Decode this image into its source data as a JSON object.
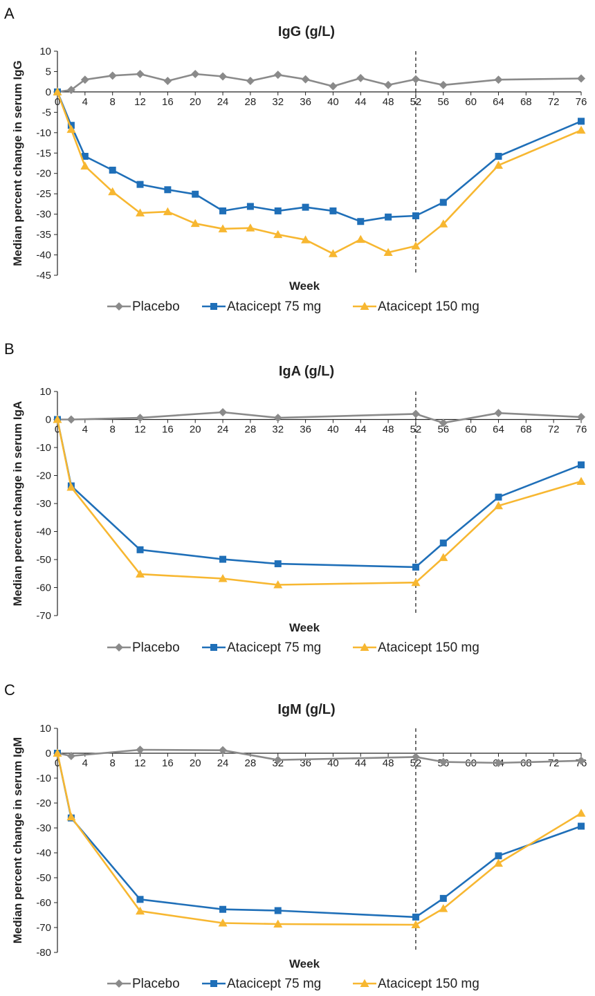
{
  "chart_data": [
    {
      "type": "line",
      "panel": "A",
      "title": "IgG (g/L)",
      "xlabel": "Week",
      "ylabel": "Median percent change in serum IgG",
      "xlim": [
        0,
        76
      ],
      "ylim": [
        -45,
        10
      ],
      "xticks": [
        0,
        4,
        8,
        12,
        16,
        20,
        24,
        28,
        32,
        36,
        40,
        44,
        48,
        52,
        56,
        60,
        64,
        68,
        72,
        76
      ],
      "yticks": [
        10,
        5,
        0,
        -5,
        -10,
        -15,
        -20,
        -25,
        -30,
        -35,
        -40,
        -45
      ],
      "reference_line_x": 52,
      "grid": false,
      "legend_position": "bottom",
      "series": [
        {
          "name": "Placebo",
          "color": "#8a8a8a",
          "marker": "diamond",
          "x": [
            0,
            2,
            4,
            8,
            12,
            16,
            20,
            24,
            28,
            32,
            36,
            40,
            44,
            48,
            52,
            56,
            64,
            76
          ],
          "y": [
            0,
            0.5,
            3,
            4,
            4.4,
            2.7,
            4.4,
            3.8,
            2.7,
            4.2,
            3.1,
            1.4,
            3.4,
            1.7,
            3.1,
            1.7,
            3.0,
            3.3
          ]
        },
        {
          "name": "Atacicept 75 mg",
          "color": "#1f6fb8",
          "marker": "square",
          "x": [
            0,
            2,
            4,
            8,
            12,
            16,
            20,
            24,
            28,
            32,
            36,
            40,
            44,
            48,
            52,
            56,
            64,
            76
          ],
          "y": [
            0,
            -8.2,
            -15.8,
            -19.2,
            -22.7,
            -24.0,
            -25.1,
            -29.2,
            -28.1,
            -29.2,
            -28.3,
            -29.2,
            -31.8,
            -30.7,
            -30.4,
            -27.1,
            -15.8,
            -7.2
          ]
        },
        {
          "name": "Atacicept 150 mg",
          "color": "#f7b731",
          "marker": "triangle",
          "x": [
            0,
            2,
            4,
            8,
            12,
            16,
            20,
            24,
            28,
            32,
            36,
            40,
            44,
            48,
            52,
            56,
            64,
            76
          ],
          "y": [
            0,
            -9.2,
            -18.2,
            -24.5,
            -29.7,
            -29.4,
            -32.3,
            -33.6,
            -33.4,
            -35.0,
            -36.3,
            -39.7,
            -36.2,
            -39.4,
            -37.8,
            -32.4,
            -18.0,
            -9.4
          ]
        }
      ]
    },
    {
      "type": "line",
      "panel": "B",
      "title": "IgA (g/L)",
      "xlabel": "Week",
      "ylabel": "Median percent change in serum IgA",
      "xlim": [
        0,
        76
      ],
      "ylim": [
        -70,
        10
      ],
      "xticks": [
        0,
        4,
        8,
        12,
        16,
        20,
        24,
        28,
        32,
        36,
        40,
        44,
        48,
        52,
        56,
        60,
        64,
        68,
        72,
        76
      ],
      "yticks": [
        10,
        0,
        -10,
        -20,
        -30,
        -40,
        -50,
        -60,
        -70
      ],
      "reference_line_x": 52,
      "grid": false,
      "legend_position": "bottom",
      "series": [
        {
          "name": "Placebo",
          "color": "#8a8a8a",
          "marker": "diamond",
          "x": [
            0,
            2,
            12,
            24,
            32,
            52,
            56,
            64,
            76
          ],
          "y": [
            0,
            0,
            0.6,
            2.6,
            0.6,
            2.0,
            -1.2,
            2.3,
            0.9
          ]
        },
        {
          "name": "Atacicept 75 mg",
          "color": "#1f6fb8",
          "marker": "square",
          "x": [
            0,
            2,
            12,
            24,
            32,
            52,
            56,
            64,
            76
          ],
          "y": [
            0,
            -23.7,
            -46.5,
            -49.9,
            -51.5,
            -52.7,
            -44.1,
            -27.7,
            -16.2
          ]
        },
        {
          "name": "Atacicept 150 mg",
          "color": "#f7b731",
          "marker": "triangle",
          "x": [
            0,
            2,
            12,
            24,
            32,
            52,
            56,
            64,
            76
          ],
          "y": [
            0,
            -24.2,
            -55.2,
            -56.8,
            -59.0,
            -58.2,
            -49.3,
            -30.8,
            -22.1
          ]
        }
      ]
    },
    {
      "type": "line",
      "panel": "C",
      "title": "IgM (g/L)",
      "xlabel": "Week",
      "ylabel": "Median percent change in serum IgM",
      "xlim": [
        0,
        76
      ],
      "ylim": [
        -80,
        10
      ],
      "xticks": [
        0,
        4,
        8,
        12,
        16,
        20,
        24,
        28,
        32,
        36,
        40,
        44,
        48,
        52,
        56,
        60,
        64,
        68,
        72,
        76
      ],
      "yticks": [
        10,
        0,
        -10,
        -20,
        -30,
        -40,
        -50,
        -60,
        -70,
        -80
      ],
      "reference_line_x": 52,
      "grid": false,
      "legend_position": "bottom",
      "series": [
        {
          "name": "Placebo",
          "color": "#8a8a8a",
          "marker": "diamond",
          "x": [
            0,
            2,
            12,
            24,
            32,
            52,
            56,
            64,
            76
          ],
          "y": [
            0,
            -1.1,
            1.4,
            1.2,
            -2.7,
            -1.5,
            -3.5,
            -3.9,
            -3.0
          ]
        },
        {
          "name": "Atacicept 75 mg",
          "color": "#1f6fb8",
          "marker": "square",
          "x": [
            0,
            2,
            12,
            24,
            32,
            52,
            56,
            64,
            76
          ],
          "y": [
            0,
            -26.0,
            -58.7,
            -62.7,
            -63.2,
            -65.8,
            -58.3,
            -41.2,
            -29.3
          ]
        },
        {
          "name": "Atacicept 150 mg",
          "color": "#f7b731",
          "marker": "triangle",
          "x": [
            0,
            2,
            12,
            24,
            32,
            52,
            56,
            64,
            76
          ],
          "y": [
            0,
            -25.6,
            -63.4,
            -68.2,
            -68.6,
            -68.9,
            -62.4,
            -44.2,
            -24.1
          ]
        }
      ]
    }
  ]
}
